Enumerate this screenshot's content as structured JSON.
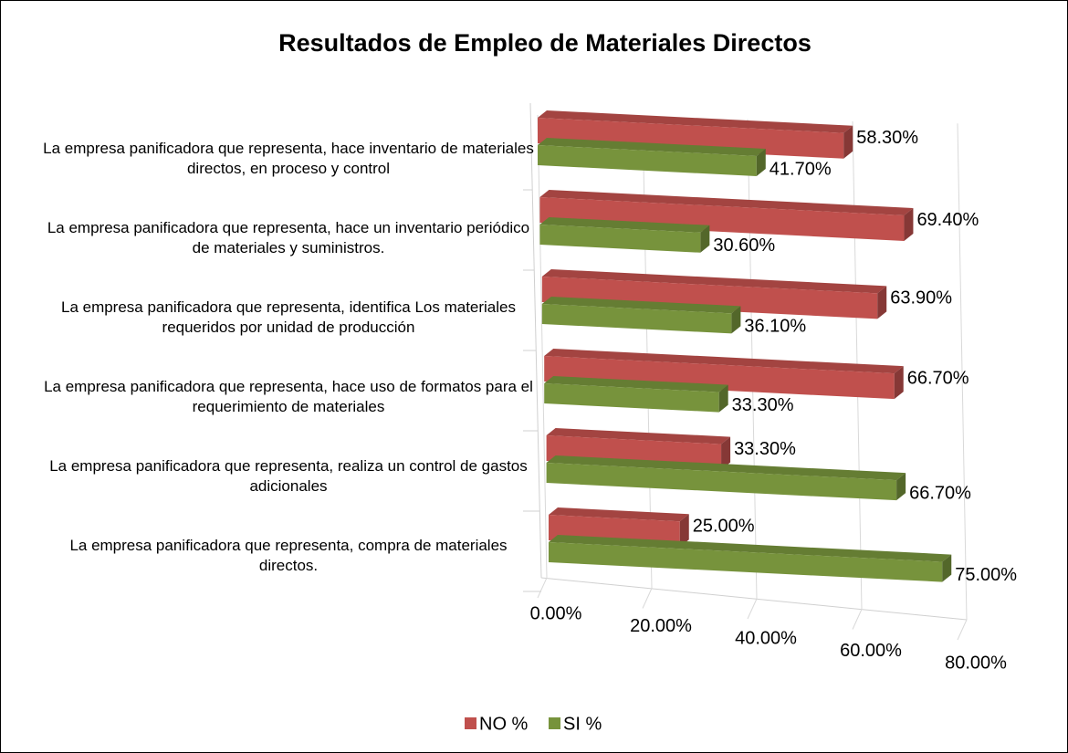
{
  "chart_data": {
    "type": "bar3d_horizontal",
    "title": "Resultados de Empleo de Materiales Directos",
    "categories": [
      "La empresa panificadora que representa, hace inventario de materiales directos, en proceso y control",
      "La empresa panificadora que representa, hace un inventario periódico de materiales y suministros.",
      "La empresa panificadora que representa, identifica Los materiales requeridos por unidad de producción",
      "La empresa panificadora que representa, hace uso de formatos para el requerimiento de materiales",
      "La empresa panificadora que representa, realiza un control de gastos adicionales",
      "La empresa panificadora que representa, compra de materiales directos."
    ],
    "series": [
      {
        "name": "NO %",
        "color": "#c0504d",
        "values": [
          58.3,
          69.4,
          63.9,
          66.7,
          33.3,
          25.0
        ],
        "value_labels": [
          "58.30%",
          "69.40%",
          "63.90%",
          "66.70%",
          "33.30%",
          "25.00%"
        ]
      },
      {
        "name": "SI %",
        "color": "#77933c",
        "values": [
          41.7,
          30.6,
          36.1,
          33.3,
          66.7,
          75.0
        ],
        "value_labels": [
          "41.70%",
          "30.60%",
          "36.10%",
          "33.30%",
          "66.70%",
          "75.00%"
        ]
      }
    ],
    "xlim": [
      0,
      80
    ],
    "xticks": [
      {
        "value": 0,
        "label": "0.00%"
      },
      {
        "value": 20,
        "label": "20.00%"
      },
      {
        "value": 40,
        "label": "40.00%"
      },
      {
        "value": 60,
        "label": "60.00%"
      },
      {
        "value": 80,
        "label": "80.00%"
      }
    ],
    "grid": true,
    "legend": "bottom"
  }
}
